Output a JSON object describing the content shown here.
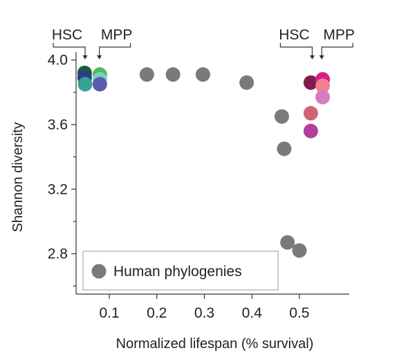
{
  "chart_data": {
    "type": "scatter",
    "title": "",
    "xlabel": "Normalized lifespan (% survival)",
    "ylabel": "Shannon diversity",
    "xlim": [
      0.03,
      0.605
    ],
    "ylim": [
      2.55,
      4.05
    ],
    "x_ticks": [
      0.1,
      0.2,
      0.3,
      0.4,
      0.5
    ],
    "x_tick_labels": [
      "0.1",
      "0.2",
      "0.3",
      "0.4",
      "0.5"
    ],
    "y_ticks": [
      2.8,
      3.2,
      3.6,
      4.0
    ],
    "y_tick_labels": [
      "2.8",
      "3.2",
      "3.6",
      "4.0"
    ],
    "y_minor_ticks": [
      2.6,
      3.0,
      3.4,
      3.8
    ],
    "legend": {
      "position": "bottom-left",
      "entries": [
        {
          "label": "Human phylogenies",
          "color": "#7a7a7a"
        }
      ]
    },
    "annotations": [
      {
        "label": "HSC",
        "group": "left",
        "x_target": 0.049
      },
      {
        "label": "MPP",
        "group": "left",
        "x_target": 0.079
      },
      {
        "label": "HSC",
        "group": "right",
        "x_target": 0.527
      },
      {
        "label": "MPP",
        "group": "right",
        "x_target": 0.547
      }
    ],
    "series": [
      {
        "name": "Human phylogenies",
        "color": "#7a7a7a",
        "points": [
          {
            "x": 0.179,
            "y": 3.91
          },
          {
            "x": 0.234,
            "y": 3.91
          },
          {
            "x": 0.297,
            "y": 3.91
          },
          {
            "x": 0.389,
            "y": 3.86
          },
          {
            "x": 0.463,
            "y": 3.65
          },
          {
            "x": 0.468,
            "y": 3.45
          },
          {
            "x": 0.475,
            "y": 2.87
          },
          {
            "x": 0.5,
            "y": 2.82
          }
        ]
      },
      {
        "name": "",
        "points": [
          {
            "x": 0.048,
            "y": 3.92,
            "color": "#1a5e3a"
          },
          {
            "x": 0.048,
            "y": 3.89,
            "color": "#2a3c8c"
          },
          {
            "x": 0.049,
            "y": 3.85,
            "color": "#3aa093"
          },
          {
            "x": 0.08,
            "y": 3.91,
            "color": "#54bb5f"
          },
          {
            "x": 0.08,
            "y": 3.88,
            "color": "#7ccfc2"
          },
          {
            "x": 0.08,
            "y": 3.85,
            "color": "#5b5aae"
          }
        ]
      },
      {
        "name": "",
        "points": [
          {
            "x": 0.524,
            "y": 3.86,
            "color": "#801d4e"
          },
          {
            "x": 0.524,
            "y": 3.67,
            "color": "#cf6478"
          },
          {
            "x": 0.524,
            "y": 3.56,
            "color": "#b23f9c"
          },
          {
            "x": 0.549,
            "y": 3.88,
            "color": "#d81f84"
          },
          {
            "x": 0.549,
            "y": 3.84,
            "color": "#f37f8f"
          },
          {
            "x": 0.549,
            "y": 3.77,
            "color": "#d77cbc"
          }
        ]
      }
    ]
  }
}
